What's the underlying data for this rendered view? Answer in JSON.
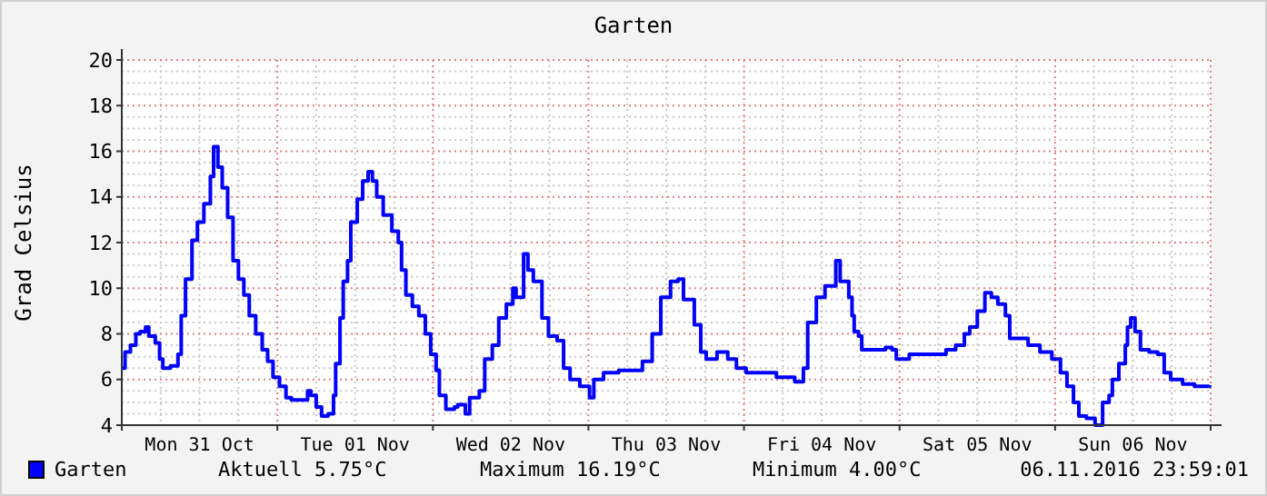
{
  "chart_data": {
    "type": "step",
    "title": "Garten",
    "ylabel": "Grad Celsius",
    "xlim": [
      "2016-10-31T00:00",
      "2016-11-07T00:00"
    ],
    "xticks": [
      {
        "value": "2016-10-31T00:00",
        "label": null
      },
      {
        "value": "2016-10-31T12:00",
        "label": "Mon 31 Oct"
      },
      {
        "value": "2016-11-01T00:00",
        "label": null
      },
      {
        "value": "2016-11-01T12:00",
        "label": "Tue 01 Nov"
      },
      {
        "value": "2016-11-02T00:00",
        "label": null
      },
      {
        "value": "2016-11-02T12:00",
        "label": "Wed 02 Nov"
      },
      {
        "value": "2016-11-03T00:00",
        "label": null
      },
      {
        "value": "2016-11-03T12:00",
        "label": "Thu 03 Nov"
      },
      {
        "value": "2016-11-04T00:00",
        "label": null
      },
      {
        "value": "2016-11-04T12:00",
        "label": "Fri 04 Nov"
      },
      {
        "value": "2016-11-05T00:00",
        "label": null
      },
      {
        "value": "2016-11-05T12:00",
        "label": "Sat 05 Nov"
      },
      {
        "value": "2016-11-06T00:00",
        "label": null
      },
      {
        "value": "2016-11-06T12:00",
        "label": "Sun 06 Nov"
      },
      {
        "value": "2016-11-07T00:00",
        "label": null
      }
    ],
    "ylim": [
      4,
      20
    ],
    "yticks": [
      4,
      6,
      8,
      10,
      12,
      14,
      16,
      18,
      20
    ],
    "grid": true,
    "legend": "bottom left",
    "x": [
      "2016-10-31T00:00",
      "2016-10-31T00:30",
      "2016-10-31T01:20",
      "2016-10-31T02:10",
      "2016-10-31T02:50",
      "2016-10-31T03:40",
      "2016-10-31T04:10",
      "2016-10-31T05:10",
      "2016-10-31T05:50",
      "2016-10-31T06:20",
      "2016-10-31T07:30",
      "2016-10-31T08:40",
      "2016-10-31T09:10",
      "2016-10-31T09:50",
      "2016-10-31T10:50",
      "2016-10-31T11:40",
      "2016-10-31T12:40",
      "2016-10-31T13:40",
      "2016-10-31T14:10",
      "2016-10-31T14:50",
      "2016-10-31T15:30",
      "2016-10-31T16:20",
      "2016-10-31T17:10",
      "2016-10-31T18:00",
      "2016-10-31T18:50",
      "2016-10-31T19:40",
      "2016-10-31T20:40",
      "2016-10-31T21:40",
      "2016-10-31T22:30",
      "2016-10-31T23:20",
      "2016-11-01T00:20",
      "2016-11-01T01:20",
      "2016-11-01T02:10",
      "2016-11-01T03:40",
      "2016-11-01T04:40",
      "2016-11-01T05:10",
      "2016-11-01T06:00",
      "2016-11-01T06:50",
      "2016-11-01T07:50",
      "2016-11-01T08:40",
      "2016-11-01T09:00",
      "2016-11-01T09:40",
      "2016-11-01T10:10",
      "2016-11-01T10:50",
      "2016-11-01T11:20",
      "2016-11-01T12:20",
      "2016-11-01T13:10",
      "2016-11-01T14:00",
      "2016-11-01T14:40",
      "2016-11-01T15:20",
      "2016-11-01T16:20",
      "2016-11-01T17:40",
      "2016-11-01T18:40",
      "2016-11-01T19:10",
      "2016-11-01T19:50",
      "2016-11-01T20:50",
      "2016-11-01T21:50",
      "2016-11-01T22:50",
      "2016-11-01T23:40",
      "2016-11-02T00:30",
      "2016-11-02T01:00",
      "2016-11-02T02:00",
      "2016-11-02T03:20",
      "2016-11-02T03:50",
      "2016-11-02T05:00",
      "2016-11-02T05:40",
      "2016-11-02T07:10",
      "2016-11-02T08:00",
      "2016-11-02T09:10",
      "2016-11-02T10:10",
      "2016-11-02T11:20",
      "2016-11-02T12:20",
      "2016-11-02T12:50",
      "2016-11-02T14:00",
      "2016-11-02T14:40",
      "2016-11-02T15:30",
      "2016-11-02T16:50",
      "2016-11-02T17:50",
      "2016-11-02T19:10",
      "2016-11-02T20:10",
      "2016-11-02T21:10",
      "2016-11-02T22:40",
      "2016-11-03T00:10",
      "2016-11-03T00:50",
      "2016-11-03T02:20",
      "2016-11-03T04:40",
      "2016-11-03T07:00",
      "2016-11-03T08:20",
      "2016-11-03T09:50",
      "2016-11-03T11:10",
      "2016-11-03T12:40",
      "2016-11-03T13:50",
      "2016-11-03T14:40",
      "2016-11-03T16:20",
      "2016-11-03T17:20",
      "2016-11-03T18:10",
      "2016-11-03T19:50",
      "2016-11-03T21:30",
      "2016-11-03T22:50",
      "2016-11-04T00:20",
      "2016-11-04T02:10",
      "2016-11-04T05:00",
      "2016-11-04T06:50",
      "2016-11-04T07:50",
      "2016-11-04T09:10",
      "2016-11-04T09:50",
      "2016-11-04T11:10",
      "2016-11-04T12:30",
      "2016-11-04T13:20",
      "2016-11-04T14:10",
      "2016-11-04T14:50",
      "2016-11-04T16:10",
      "2016-11-04T16:40",
      "2016-11-04T17:00",
      "2016-11-04T17:40",
      "2016-11-04T18:10",
      "2016-11-04T20:50",
      "2016-11-04T21:50",
      "2016-11-04T22:50",
      "2016-11-04T23:30",
      "2016-11-05T01:30",
      "2016-11-05T05:40",
      "2016-11-05T07:10",
      "2016-11-05T08:40",
      "2016-11-05T10:00",
      "2016-11-05T10:50",
      "2016-11-05T12:00",
      "2016-11-05T13:10",
      "2016-11-05T14:10",
      "2016-11-05T15:10",
      "2016-11-05T16:20",
      "2016-11-05T17:00",
      "2016-11-05T18:20",
      "2016-11-05T19:50",
      "2016-11-05T21:40",
      "2016-11-05T23:30",
      "2016-11-06T00:50",
      "2016-11-06T01:50",
      "2016-11-06T02:50",
      "2016-11-06T03:40",
      "2016-11-06T04:50",
      "2016-11-06T06:10",
      "2016-11-06T07:20",
      "2016-11-06T08:20",
      "2016-11-06T08:50",
      "2016-11-06T09:50",
      "2016-11-06T10:50",
      "2016-11-06T11:10",
      "2016-11-06T11:40",
      "2016-11-06T12:20",
      "2016-11-06T13:10",
      "2016-11-06T14:30",
      "2016-11-06T15:50",
      "2016-11-06T16:50",
      "2016-11-06T17:50",
      "2016-11-06T19:40",
      "2016-11-06T21:30",
      "2016-11-06T23:50"
    ],
    "series": [
      {
        "name": "Garten",
        "color": "#0000ff",
        "values": [
          6.5,
          7.2,
          7.5,
          8.0,
          8.1,
          8.3,
          7.9,
          7.6,
          6.9,
          6.5,
          6.6,
          7.1,
          8.8,
          10.4,
          12.1,
          12.9,
          13.7,
          14.9,
          16.2,
          15.3,
          14.4,
          13.1,
          11.2,
          10.4,
          9.7,
          8.8,
          8.0,
          7.3,
          6.8,
          6.1,
          5.7,
          5.2,
          5.1,
          5.1,
          5.5,
          5.3,
          4.8,
          4.4,
          4.5,
          5.3,
          6.7,
          8.7,
          10.3,
          11.2,
          12.9,
          13.9,
          14.7,
          15.1,
          14.7,
          14.0,
          13.2,
          12.5,
          12.0,
          10.8,
          9.7,
          9.2,
          8.8,
          8.0,
          7.1,
          6.4,
          5.3,
          4.7,
          4.8,
          4.9,
          4.5,
          5.2,
          5.5,
          6.9,
          7.5,
          8.7,
          9.3,
          10.0,
          9.6,
          11.5,
          10.8,
          10.3,
          8.7,
          7.9,
          7.7,
          6.5,
          6.0,
          5.7,
          5.2,
          6.0,
          6.3,
          6.4,
          6.4,
          6.8,
          8.0,
          9.6,
          10.3,
          10.4,
          9.5,
          8.4,
          7.2,
          6.9,
          7.2,
          6.9,
          6.5,
          6.3,
          6.3,
          6.1,
          6.1,
          5.9,
          6.5,
          8.5,
          9.6,
          10.1,
          10.1,
          11.2,
          10.3,
          9.6,
          8.8,
          8.1,
          7.9,
          7.3,
          7.3,
          7.4,
          7.3,
          6.9,
          7.1,
          7.1,
          7.3,
          7.5,
          8.0,
          8.3,
          9.0,
          9.8,
          9.6,
          9.3,
          8.8,
          7.8,
          7.8,
          7.5,
          7.2,
          6.9,
          6.3,
          5.7,
          5.0,
          4.4,
          4.3,
          4.0,
          5.0,
          5.3,
          6.0,
          6.7,
          7.5,
          8.3,
          8.7,
          8.1,
          7.3,
          7.2,
          7.1,
          6.3,
          6.0,
          5.8,
          5.7,
          5.75
        ]
      }
    ],
    "annotations": [
      "Aktuell 5.75°C",
      "Maximum 16.19°C",
      "Minimum 4.00°C",
      "06.11.2016 23:59:01"
    ]
  }
}
